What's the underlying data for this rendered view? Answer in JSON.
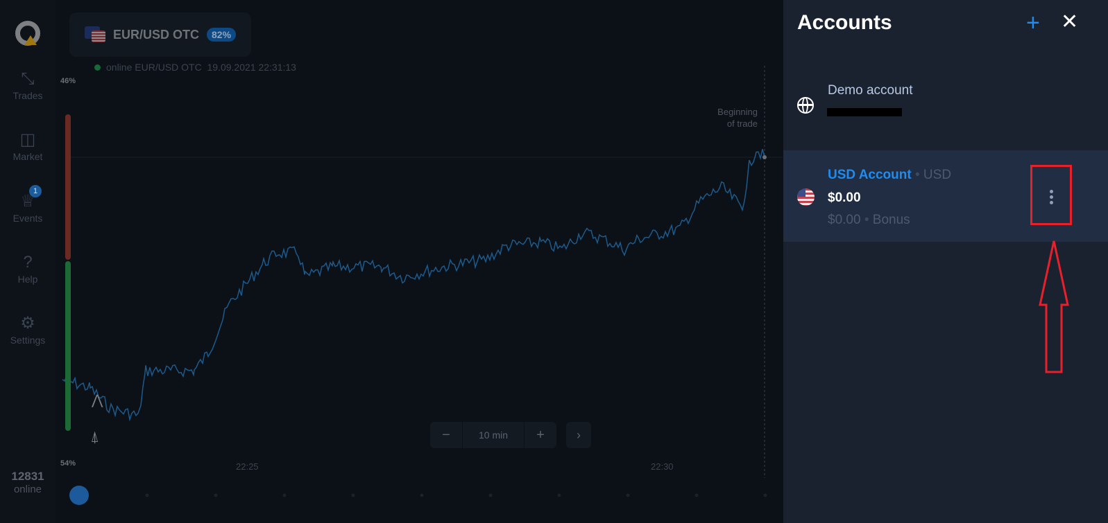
{
  "sidebar": {
    "items": [
      {
        "label": "Trades",
        "icon": "arrows-icon"
      },
      {
        "label": "Market",
        "icon": "bag-icon"
      },
      {
        "label": "Events",
        "icon": "trophy-icon",
        "badge": "1"
      },
      {
        "label": "Help",
        "icon": "help-icon"
      },
      {
        "label": "Settings",
        "icon": "gear-icon"
      }
    ],
    "online_count": "12831",
    "online_label": "online"
  },
  "chart": {
    "asset": "EUR/USD OTC",
    "payout": "82%",
    "status": "online EUR/USD OTC",
    "datetime": "19.09.2021 22:31:13",
    "top_pct": "46%",
    "bottom_pct": "54%",
    "times": [
      "22:25",
      "22:30"
    ],
    "beginning": "Beginning",
    "of_trade": "of trade",
    "timeframe": "10 min",
    "minus": "−",
    "plus": "+",
    "next": "›",
    "line_color": "#1d5a8c"
  },
  "panel": {
    "title": "Accounts",
    "demo": {
      "name": "Demo account"
    },
    "usd": {
      "name": "USD Account",
      "currency": "USD",
      "balance": "$0.00",
      "bonus_amount": "$0.00",
      "bonus_label": "Bonus"
    }
  },
  "colors": {
    "accent": "#1e8cf0",
    "highlight": "#e8202a"
  }
}
